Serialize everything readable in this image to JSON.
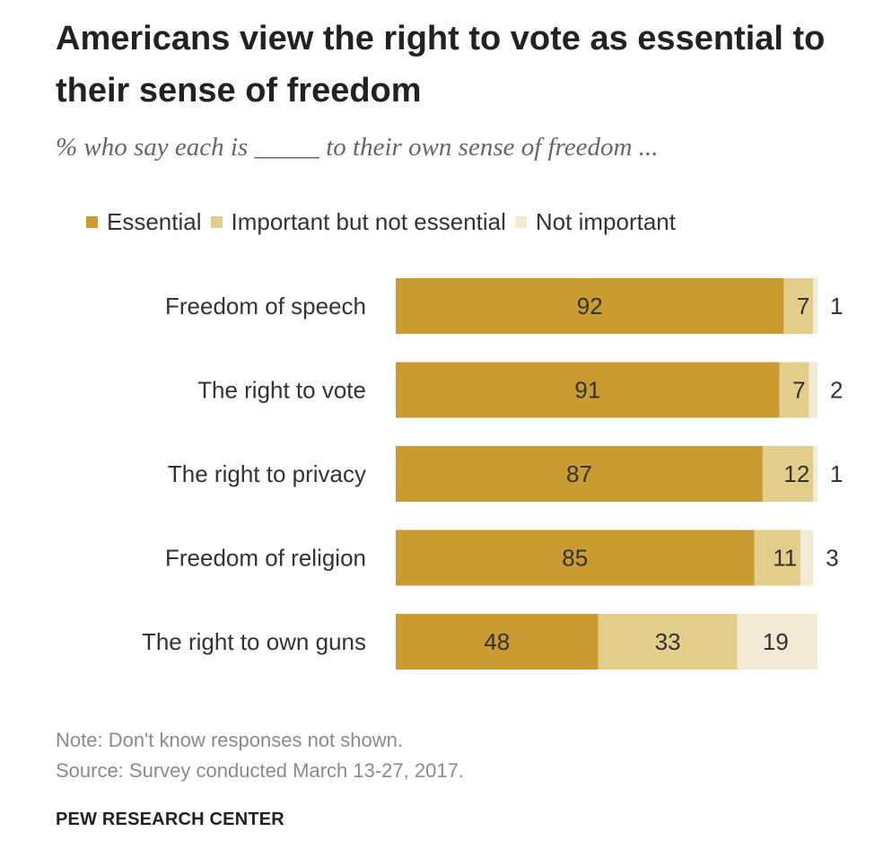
{
  "colors": {
    "essential": "#c99b31",
    "important": "#e3cd8a",
    "not_important": "#f3ead3",
    "label": "#333333",
    "value_text": "#333333"
  },
  "legend": {
    "essential": "Essential",
    "important": "Important but not essential",
    "not_important": "Not important"
  },
  "notes": {
    "note": "Note: Don't know responses not shown.",
    "source": "Source: Survey conducted March 13-27, 2017.",
    "brand": "PEW RESEARCH CENTER"
  },
  "chart_data": {
    "type": "bar",
    "orientation": "horizontal",
    "stacked": true,
    "title": "Americans view the right to vote as essential to their sense of freedom",
    "subtitle": "% who say each is _____ to their own sense of freedom ...",
    "categories": [
      "Freedom of speech",
      "The right to vote",
      "The right to privacy",
      "Freedom of religion",
      "The right to own guns"
    ],
    "series": [
      {
        "name": "Essential",
        "values": [
          92,
          91,
          87,
          85,
          48
        ]
      },
      {
        "name": "Important but not essential",
        "values": [
          7,
          7,
          12,
          11,
          33
        ]
      },
      {
        "name": "Not important",
        "values": [
          1,
          2,
          1,
          3,
          19
        ]
      }
    ],
    "xlim": [
      0,
      100
    ],
    "grid": false,
    "legend_position": "top"
  }
}
